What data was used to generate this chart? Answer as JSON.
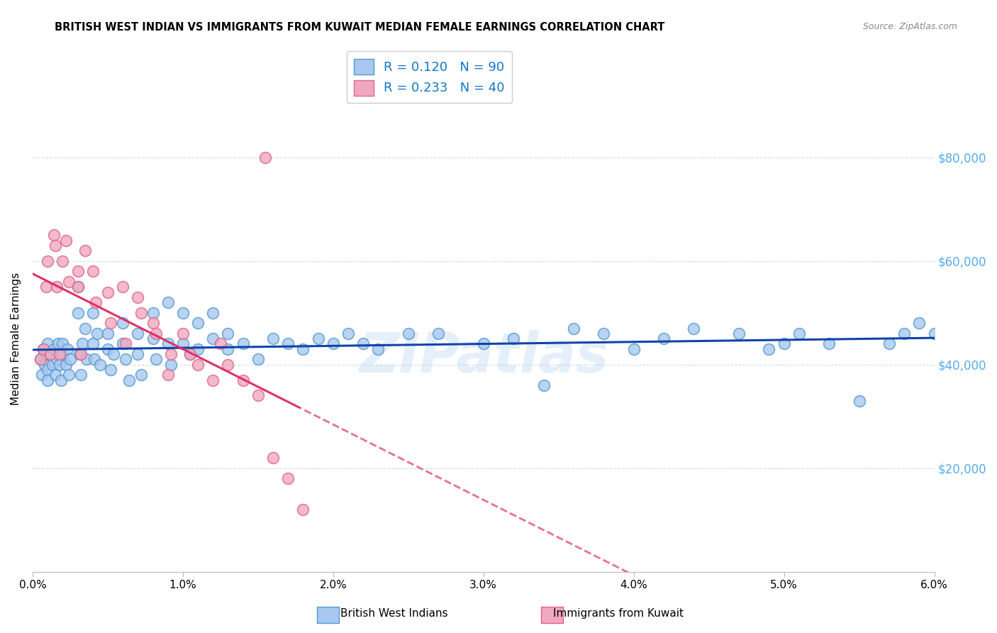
{
  "title": "BRITISH WEST INDIAN VS IMMIGRANTS FROM KUWAIT MEDIAN FEMALE EARNINGS CORRELATION CHART",
  "source": "Source: ZipAtlas.com",
  "ylabel": "Median Female Earnings",
  "xmin": 0.0,
  "xmax": 0.06,
  "ymin": 0,
  "ymax": 90000,
  "yticks": [
    0,
    20000,
    40000,
    60000,
    80000
  ],
  "ytick_labels": [
    "",
    "$20,000",
    "$40,000",
    "$60,000",
    "$80,000"
  ],
  "xtick_labels": [
    "0.0%",
    "1.0%",
    "2.0%",
    "3.0%",
    "4.0%",
    "5.0%",
    "6.0%"
  ],
  "xticks": [
    0.0,
    0.01,
    0.02,
    0.03,
    0.04,
    0.05,
    0.06
  ],
  "legend_r1": "R = 0.120",
  "legend_n1": "N = 90",
  "legend_r2": "R = 0.233",
  "legend_n2": "N = 40",
  "color_blue": "#a8c8f0",
  "color_pink": "#f0a8c0",
  "color_blue_dark": "#5599cc",
  "color_pink_dark": "#dd6688",
  "color_line_blue": "#1144aa",
  "color_line_pink": "#dd3366",
  "color_axis_right": "#55aaee",
  "color_text_blue": "#1177cc",
  "watermark_text": "ZIPatlas",
  "blue_x": [
    0.0005,
    0.0006,
    0.0007,
    0.0008,
    0.0009,
    0.001,
    0.001,
    0.001,
    0.0012,
    0.0013,
    0.0014,
    0.0015,
    0.0016,
    0.0017,
    0.0018,
    0.0019,
    0.002,
    0.002,
    0.0022,
    0.0023,
    0.0024,
    0.0025,
    0.003,
    0.003,
    0.0031,
    0.0032,
    0.0033,
    0.0035,
    0.0036,
    0.004,
    0.004,
    0.0041,
    0.0043,
    0.0045,
    0.005,
    0.005,
    0.0052,
    0.0054,
    0.006,
    0.006,
    0.0062,
    0.0064,
    0.007,
    0.007,
    0.0072,
    0.008,
    0.008,
    0.0082,
    0.009,
    0.009,
    0.0092,
    0.01,
    0.01,
    0.0105,
    0.011,
    0.011,
    0.012,
    0.012,
    0.013,
    0.013,
    0.014,
    0.015,
    0.016,
    0.017,
    0.018,
    0.019,
    0.02,
    0.021,
    0.022,
    0.023,
    0.025,
    0.027,
    0.03,
    0.032,
    0.034,
    0.036,
    0.038,
    0.04,
    0.042,
    0.044,
    0.047,
    0.049,
    0.05,
    0.051,
    0.053,
    0.055,
    0.057,
    0.058,
    0.059,
    0.06
  ],
  "blue_y": [
    41000,
    38000,
    43000,
    40000,
    42000,
    44000,
    39000,
    37000,
    42000,
    40000,
    43000,
    38000,
    41000,
    44000,
    40000,
    37000,
    42000,
    44000,
    40000,
    43000,
    38000,
    41000,
    50000,
    55000,
    42000,
    38000,
    44000,
    47000,
    41000,
    50000,
    44000,
    41000,
    46000,
    40000,
    43000,
    46000,
    39000,
    42000,
    44000,
    48000,
    41000,
    37000,
    46000,
    42000,
    38000,
    50000,
    45000,
    41000,
    52000,
    44000,
    40000,
    50000,
    44000,
    42000,
    48000,
    43000,
    50000,
    45000,
    46000,
    43000,
    44000,
    41000,
    45000,
    44000,
    43000,
    45000,
    44000,
    46000,
    44000,
    43000,
    46000,
    46000,
    44000,
    45000,
    36000,
    47000,
    46000,
    43000,
    45000,
    47000,
    46000,
    43000,
    44000,
    46000,
    44000,
    33000,
    44000,
    46000,
    48000,
    46000
  ],
  "pink_x": [
    0.0005,
    0.0007,
    0.0009,
    0.001,
    0.0012,
    0.0014,
    0.0015,
    0.0016,
    0.0018,
    0.002,
    0.0022,
    0.0024,
    0.003,
    0.003,
    0.0032,
    0.0035,
    0.004,
    0.0042,
    0.005,
    0.0052,
    0.006,
    0.0062,
    0.007,
    0.0072,
    0.008,
    0.0082,
    0.009,
    0.0092,
    0.01,
    0.0105,
    0.011,
    0.012,
    0.0125,
    0.013,
    0.014,
    0.015,
    0.016,
    0.017,
    0.0155,
    0.018
  ],
  "pink_y": [
    41000,
    43000,
    55000,
    60000,
    42000,
    65000,
    63000,
    55000,
    42000,
    60000,
    64000,
    56000,
    58000,
    55000,
    42000,
    62000,
    58000,
    52000,
    54000,
    48000,
    55000,
    44000,
    53000,
    50000,
    48000,
    46000,
    38000,
    42000,
    46000,
    42000,
    40000,
    37000,
    44000,
    40000,
    37000,
    34000,
    22000,
    18000,
    80000,
    12000
  ]
}
